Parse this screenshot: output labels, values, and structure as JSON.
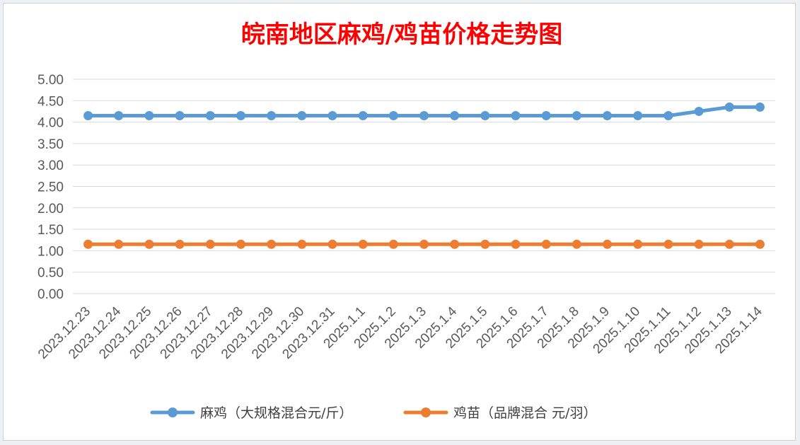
{
  "chart_data": {
    "type": "line",
    "title": "皖南地区麻鸡/鸡苗价格走势图",
    "title_color": "#ff0000",
    "categories": [
      "2023.12.23",
      "2023.12.24",
      "2023.12.25",
      "2023.12.26",
      "2023.12.27",
      "2023.12.28",
      "2023.12.29",
      "2023.12.30",
      "2023.12.31",
      "2025.1.1",
      "2025.1.2",
      "2025.1.3",
      "2025.1.4",
      "2025.1.5",
      "2025.1.6",
      "2025.1.7",
      "2025.1.8",
      "2025.1.9",
      "2025.1.10",
      "2025.1.11",
      "2025.1.12",
      "2025.1.13",
      "2025.1.14"
    ],
    "series": [
      {
        "name": "麻鸡（大规格混合元/斤）",
        "color": "#5b9bd5",
        "values": [
          4.15,
          4.15,
          4.15,
          4.15,
          4.15,
          4.15,
          4.15,
          4.15,
          4.15,
          4.15,
          4.15,
          4.15,
          4.15,
          4.15,
          4.15,
          4.15,
          4.15,
          4.15,
          4.15,
          4.15,
          4.25,
          4.35,
          4.35
        ]
      },
      {
        "name": "鸡苗（品牌混合 元/羽）",
        "color": "#ed7d31",
        "values": [
          1.15,
          1.15,
          1.15,
          1.15,
          1.15,
          1.15,
          1.15,
          1.15,
          1.15,
          1.15,
          1.15,
          1.15,
          1.15,
          1.15,
          1.15,
          1.15,
          1.15,
          1.15,
          1.15,
          1.15,
          1.15,
          1.15,
          1.15
        ]
      }
    ],
    "y_ticks": [
      "0.00",
      "0.50",
      "1.00",
      "1.50",
      "2.00",
      "2.50",
      "3.00",
      "3.50",
      "4.00",
      "4.50",
      "5.00"
    ],
    "ylim": [
      0,
      5
    ],
    "grid": true,
    "legend_position": "bottom",
    "gridline_color": "#d9d9d9"
  }
}
